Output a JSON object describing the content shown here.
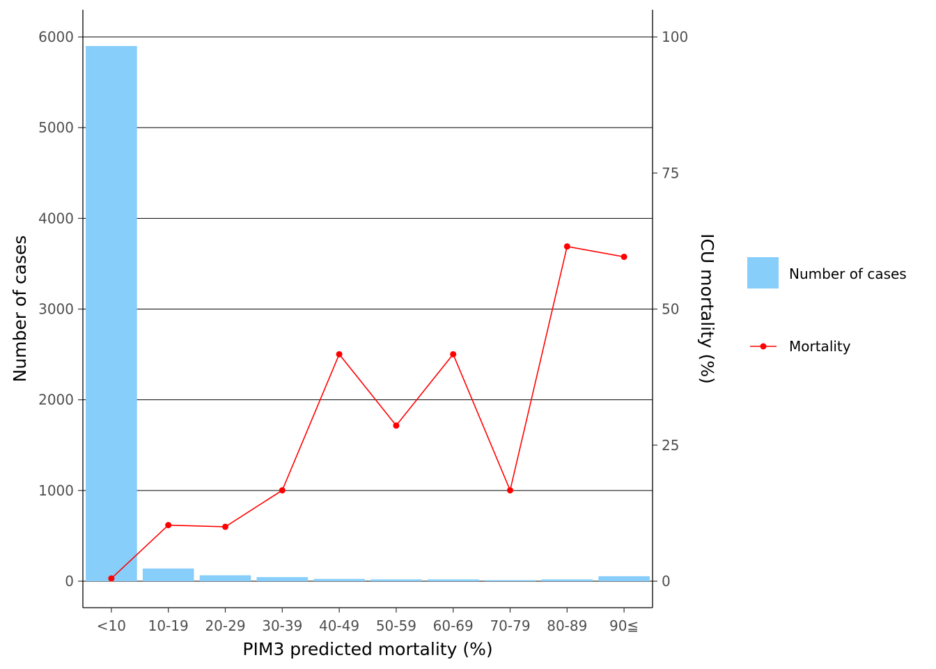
{
  "chart_data": {
    "type": "bar",
    "title": "",
    "xlabel": "PIM3 predicted mortality (%)",
    "ylabel": "Number of cases",
    "y2label": "ICU mortality (%)",
    "categories": [
      "<10",
      "10-19",
      "20-29",
      "30-39",
      "40-49",
      "50-59",
      "60-69",
      "70-79",
      "80-89",
      "90≦"
    ],
    "ylim": [
      0,
      6000
    ],
    "y_ticks": [
      "0",
      "1000",
      "2000",
      "3000",
      "4000",
      "5000",
      "6000"
    ],
    "y2lim": [
      0,
      100
    ],
    "y2_ticks": [
      "0",
      "25",
      "50",
      "75",
      "100"
    ],
    "grid": "horizontal major lines on left axis",
    "legend_position": "right",
    "series": [
      {
        "name": "Number of cases",
        "type": "bar",
        "axis": "left",
        "color": "#87CEFA",
        "values": [
          5900,
          140,
          65,
          45,
          25,
          20,
          20,
          12,
          20,
          55
        ]
      },
      {
        "name": "Mortality",
        "type": "line",
        "axis": "right",
        "color": "#FF0000",
        "values": [
          0.5,
          10.3,
          10.0,
          16.7,
          41.7,
          28.6,
          41.7,
          16.7,
          61.5,
          59.6
        ]
      }
    ]
  }
}
